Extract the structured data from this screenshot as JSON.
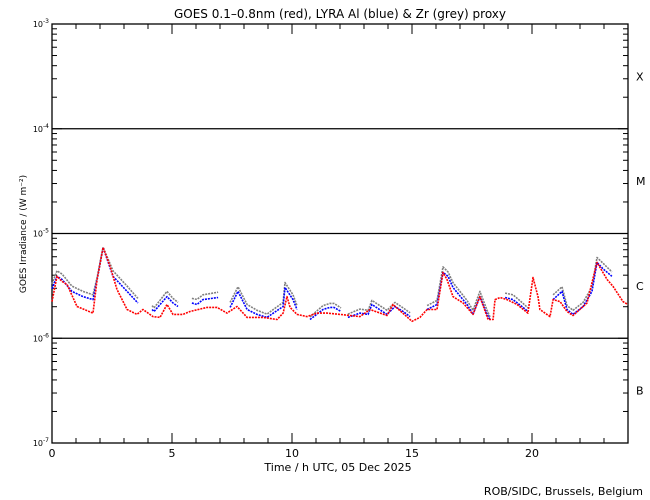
{
  "chart_data": {
    "type": "line",
    "title": "GOES 0.1–0.8nm (red), LYRA Al (blue) & Zr (grey) proxy",
    "xlabel": "Time / h UTC, 05 Dec 2025",
    "ylabel": "GOES Irradiance / (W m⁻²)",
    "xlim": [
      0,
      24
    ],
    "ylim": [
      1e-07,
      0.001
    ],
    "yscale": "log",
    "x_ticks": [
      "0",
      "5",
      "10",
      "15",
      "20"
    ],
    "x_tick_values": [
      0,
      5,
      10,
      15,
      20
    ],
    "y_ticks": [
      {
        "base": "10",
        "exp": "-3",
        "value": 0.001
      },
      {
        "base": "10",
        "exp": "-4",
        "value": 0.0001
      },
      {
        "base": "10",
        "exp": "-5",
        "value": 1e-05
      },
      {
        "base": "10",
        "exp": "-6",
        "value": 1e-06
      },
      {
        "base": "10",
        "exp": "-7",
        "value": 1e-07
      }
    ],
    "flare_classes": [
      {
        "label": "X",
        "low": 0.0001,
        "high": 0.001
      },
      {
        "label": "M",
        "low": 1e-05,
        "high": 0.0001
      },
      {
        "label": "C",
        "low": 1e-06,
        "high": 1e-05
      },
      {
        "label": "B",
        "low": 1e-07,
        "high": 1e-06
      }
    ],
    "class_boundaries": [
      0.0001,
      1e-05,
      1e-06
    ],
    "series": [
      {
        "name": "GOES 0.1-0.8nm",
        "color": "#ff0000",
        "points": [
          [
            0,
            2.24e-06
          ],
          [
            0.21,
            3.9e-06
          ],
          [
            0.42,
            3.48e-06
          ],
          [
            0.63,
            3.26e-06
          ],
          [
            1.04,
            2.01e-06
          ],
          [
            1.71,
            1.74e-06
          ],
          [
            1.88,
            3.64e-06
          ],
          [
            2.13,
            7.35e-06
          ],
          [
            2.42,
            4.84e-06
          ],
          [
            2.71,
            2.92e-06
          ],
          [
            3.13,
            1.88e-06
          ],
          [
            3.54,
            1.69e-06
          ],
          [
            3.79,
            1.88e-06
          ],
          [
            4.21,
            1.61e-06
          ],
          [
            4.5,
            1.58e-06
          ],
          [
            4.79,
            2.1e-06
          ],
          [
            5.04,
            1.69e-06
          ],
          [
            5.46,
            1.69e-06
          ],
          [
            5.75,
            1.8e-06
          ],
          [
            6.46,
            1.97e-06
          ],
          [
            6.88,
            1.97e-06
          ],
          [
            7.29,
            1.74e-06
          ],
          [
            7.71,
            2.01e-06
          ],
          [
            8.13,
            1.58e-06
          ],
          [
            8.79,
            1.58e-06
          ],
          [
            9.38,
            1.51e-06
          ],
          [
            9.63,
            1.74e-06
          ],
          [
            9.79,
            2.5e-06
          ],
          [
            9.92,
            1.97e-06
          ],
          [
            10.21,
            1.69e-06
          ],
          [
            10.63,
            1.61e-06
          ],
          [
            11.04,
            1.74e-06
          ],
          [
            11.46,
            1.74e-06
          ],
          [
            12.0,
            1.69e-06
          ],
          [
            12.83,
            1.61e-06
          ],
          [
            13.25,
            1.88e-06
          ],
          [
            13.96,
            1.65e-06
          ],
          [
            14.21,
            2.1e-06
          ],
          [
            15.0,
            1.45e-06
          ],
          [
            15.33,
            1.58e-06
          ],
          [
            15.63,
            1.88e-06
          ],
          [
            16.04,
            1.88e-06
          ],
          [
            16.29,
            4.25e-06
          ],
          [
            16.46,
            3.64e-06
          ],
          [
            16.71,
            2.5e-06
          ],
          [
            17.13,
            2.17e-06
          ],
          [
            17.54,
            1.69e-06
          ],
          [
            17.83,
            2.5e-06
          ],
          [
            18.17,
            1.51e-06
          ],
          [
            18.38,
            1.51e-06
          ],
          [
            18.46,
            2.34e-06
          ],
          [
            18.67,
            2.45e-06
          ],
          [
            18.96,
            2.34e-06
          ],
          [
            19.38,
            2.1e-06
          ],
          [
            19.83,
            1.74e-06
          ],
          [
            20.04,
            3.8e-06
          ],
          [
            20.25,
            2.5e-06
          ],
          [
            20.33,
            1.88e-06
          ],
          [
            20.75,
            1.61e-06
          ],
          [
            20.88,
            2.34e-06
          ],
          [
            21.17,
            2.24e-06
          ],
          [
            21.46,
            1.8e-06
          ],
          [
            21.71,
            1.65e-06
          ],
          [
            22.29,
            2.17e-06
          ],
          [
            22.71,
            5.3e-06
          ],
          [
            23.13,
            3.64e-06
          ],
          [
            23.38,
            3.12e-06
          ],
          [
            23.79,
            2.24e-06
          ],
          [
            24,
            2.1e-06
          ]
        ]
      },
      {
        "name": "LYRA Al proxy",
        "color": "#0000ff",
        "points": [
          [
            0,
            2.97e-06
          ],
          [
            0.21,
            3.9e-06
          ],
          [
            0.42,
            3.64e-06
          ],
          [
            0.83,
            2.8e-06
          ],
          [
            1.29,
            2.5e-06
          ],
          [
            1.71,
            2.34e-06
          ],
          [
            1.88,
            3.64e-06
          ],
          [
            2.13,
            7.35e-06
          ],
          [
            2.54,
            3.9e-06
          ],
          [
            3.13,
            2.8e-06
          ],
          [
            3.58,
            2.17e-06
          ],
          null,
          [
            4.17,
            1.88e-06
          ],
          [
            4.25,
            1.8e-06
          ],
          [
            4.79,
            2.5e-06
          ],
          [
            5.04,
            2.17e-06
          ],
          [
            5.25,
            2.01e-06
          ],
          null,
          [
            5.83,
            2.17e-06
          ],
          [
            6.04,
            2.1e-06
          ],
          [
            6.29,
            2.34e-06
          ],
          [
            6.92,
            2.45e-06
          ],
          null,
          [
            7.42,
            1.97e-06
          ],
          [
            7.75,
            2.8e-06
          ],
          [
            8.13,
            1.88e-06
          ],
          [
            8.54,
            1.69e-06
          ],
          [
            8.96,
            1.58e-06
          ],
          [
            9.63,
            2.01e-06
          ],
          [
            9.71,
            3.05e-06
          ],
          [
            10.04,
            2.34e-06
          ],
          [
            10.21,
            1.88e-06
          ],
          null,
          [
            10.75,
            1.51e-06
          ],
          [
            11.29,
            1.88e-06
          ],
          [
            11.58,
            1.97e-06
          ],
          [
            11.75,
            1.97e-06
          ],
          [
            12.04,
            1.8e-06
          ],
          null,
          [
            12.33,
            1.58e-06
          ],
          [
            12.83,
            1.74e-06
          ],
          [
            13.17,
            1.69e-06
          ],
          [
            13.33,
            2.1e-06
          ],
          [
            13.96,
            1.69e-06
          ],
          [
            14.29,
            2.01e-06
          ],
          [
            14.63,
            1.8e-06
          ],
          [
            14.92,
            1.61e-06
          ],
          null,
          [
            15.63,
            1.88e-06
          ],
          [
            16.04,
            2.1e-06
          ],
          [
            16.29,
            4.25e-06
          ],
          [
            16.5,
            3.9e-06
          ],
          [
            16.71,
            3.05e-06
          ],
          [
            17.29,
            2.1e-06
          ],
          [
            17.54,
            1.69e-06
          ],
          [
            17.83,
            2.5e-06
          ],
          [
            18.13,
            1.69e-06
          ],
          [
            18.25,
            1.51e-06
          ],
          null,
          [
            18.88,
            2.45e-06
          ],
          [
            19.21,
            2.34e-06
          ],
          [
            19.63,
            1.97e-06
          ],
          [
            19.83,
            1.8e-06
          ],
          null,
          [
            20.88,
            2.34e-06
          ],
          [
            21.25,
            2.8e-06
          ],
          [
            21.46,
            1.88e-06
          ],
          [
            21.71,
            1.69e-06
          ],
          [
            22.13,
            2.01e-06
          ],
          [
            22.5,
            2.8e-06
          ],
          [
            22.71,
            5.3e-06
          ],
          [
            22.96,
            4.6e-06
          ],
          [
            23.33,
            3.9e-06
          ]
        ]
      },
      {
        "name": "LYRA Zr proxy",
        "color": "#808080",
        "points": [
          [
            0,
            3.3e-06
          ],
          [
            0.21,
            4.4e-06
          ],
          [
            0.42,
            4.1e-06
          ],
          [
            0.83,
            3.15e-06
          ],
          [
            1.29,
            2.8e-06
          ],
          [
            1.71,
            2.6e-06
          ],
          [
            1.88,
            3.8e-06
          ],
          [
            2.13,
            7.4e-06
          ],
          [
            2.54,
            4.4e-06
          ],
          [
            3.13,
            3.15e-06
          ],
          [
            3.58,
            2.4e-06
          ],
          null,
          [
            4.17,
            2.05e-06
          ],
          [
            4.25,
            1.95e-06
          ],
          [
            4.79,
            2.8e-06
          ],
          [
            5.04,
            2.4e-06
          ],
          [
            5.25,
            2.2e-06
          ],
          null,
          [
            5.83,
            2.4e-06
          ],
          [
            6.04,
            2.35e-06
          ],
          [
            6.29,
            2.6e-06
          ],
          [
            6.92,
            2.75e-06
          ],
          null,
          [
            7.42,
            2.2e-06
          ],
          [
            7.75,
            3.1e-06
          ],
          [
            8.13,
            2.1e-06
          ],
          [
            8.54,
            1.85e-06
          ],
          [
            8.96,
            1.7e-06
          ],
          [
            9.63,
            2.2e-06
          ],
          [
            9.71,
            3.4e-06
          ],
          [
            10.04,
            2.6e-06
          ],
          [
            10.21,
            2.05e-06
          ],
          null,
          [
            10.75,
            1.6e-06
          ],
          [
            11.29,
            2.05e-06
          ],
          [
            11.58,
            2.15e-06
          ],
          [
            11.75,
            2.15e-06
          ],
          [
            12.04,
            1.95e-06
          ],
          null,
          [
            12.33,
            1.7e-06
          ],
          [
            12.83,
            1.9e-06
          ],
          [
            13.17,
            1.85e-06
          ],
          [
            13.33,
            2.3e-06
          ],
          [
            13.96,
            1.85e-06
          ],
          [
            14.29,
            2.2e-06
          ],
          [
            14.63,
            1.95e-06
          ],
          [
            14.92,
            1.75e-06
          ],
          null,
          [
            15.63,
            2.05e-06
          ],
          [
            16.04,
            2.3e-06
          ],
          [
            16.29,
            4.8e-06
          ],
          [
            16.5,
            4.3e-06
          ],
          [
            16.71,
            3.4e-06
          ],
          [
            17.29,
            2.3e-06
          ],
          [
            17.54,
            1.85e-06
          ],
          [
            17.83,
            2.8e-06
          ],
          [
            18.13,
            1.85e-06
          ],
          [
            18.25,
            1.6e-06
          ],
          null,
          [
            18.88,
            2.7e-06
          ],
          [
            19.21,
            2.6e-06
          ],
          [
            19.63,
            2.15e-06
          ],
          [
            19.83,
            1.95e-06
          ],
          null,
          [
            20.88,
            2.6e-06
          ],
          [
            21.25,
            3.1e-06
          ],
          [
            21.46,
            2.05e-06
          ],
          [
            21.71,
            1.85e-06
          ],
          [
            22.13,
            2.2e-06
          ],
          [
            22.5,
            3.1e-06
          ],
          [
            22.71,
            5.9e-06
          ],
          [
            22.96,
            5.2e-06
          ],
          [
            23.33,
            4.3e-06
          ]
        ]
      }
    ]
  },
  "credit": "ROB/SIDC, Brussels, Belgium"
}
